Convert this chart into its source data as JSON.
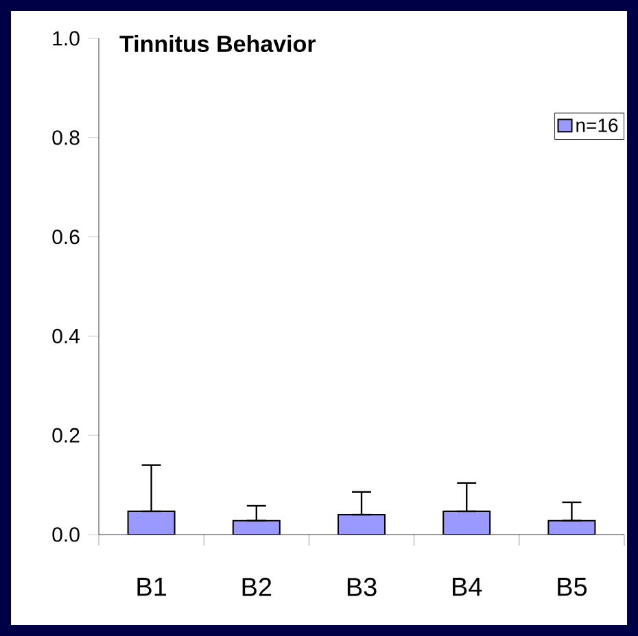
{
  "chart_data": {
    "type": "bar",
    "title": "Tinnitus Behavior",
    "categories": [
      "B1",
      "B2",
      "B3",
      "B4",
      "B5"
    ],
    "series": [
      {
        "name": "n=16",
        "color": "#9999ff",
        "values": [
          0.047,
          0.028,
          0.04,
          0.047,
          0.028
        ],
        "errors": [
          [
            0.047,
            0.14
          ],
          [
            0.028,
            0.058
          ],
          [
            0.04,
            0.086
          ],
          [
            0.047,
            0.104
          ],
          [
            0.028,
            0.065
          ]
        ]
      }
    ],
    "ylim": [
      0,
      1
    ],
    "yticks": [
      {
        "value": 0,
        "label": "0.0"
      },
      {
        "value": 0.2,
        "label": "0.2"
      },
      {
        "value": 0.4,
        "label": "0.4"
      },
      {
        "value": 0.6,
        "label": "0.6"
      },
      {
        "value": 0.8,
        "label": "0.8"
      },
      {
        "value": 1,
        "label": "1.0"
      }
    ],
    "legend": "top right"
  }
}
